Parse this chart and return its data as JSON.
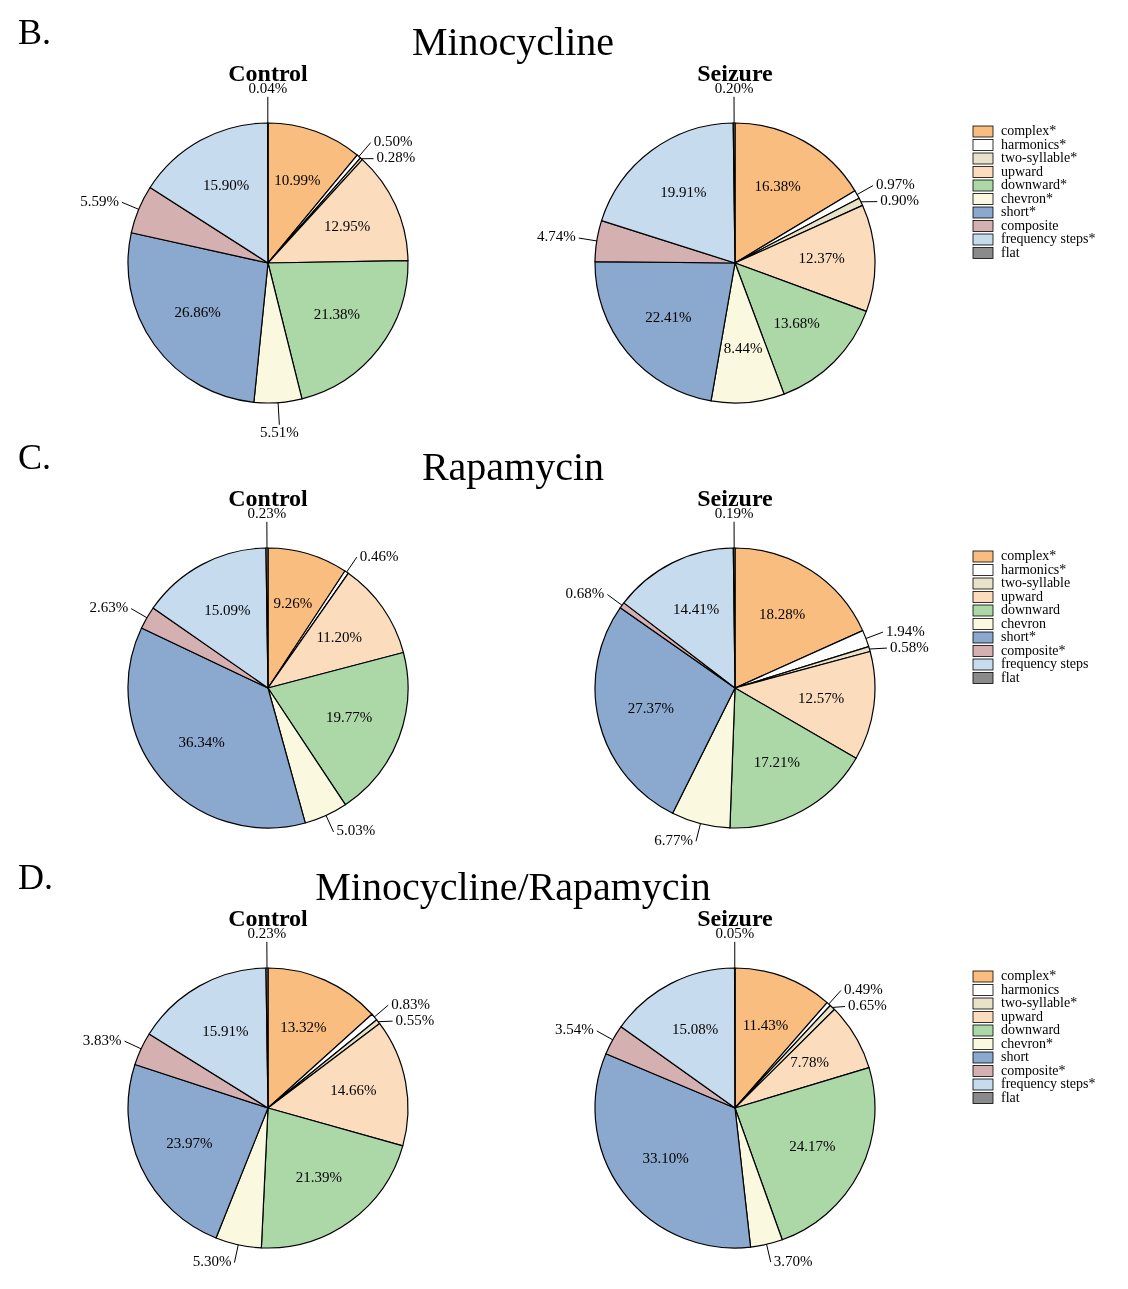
{
  "chart_data": [
    {
      "type": "pie",
      "title": "Control",
      "annotations": [
        "B.",
        "Minocycline"
      ],
      "values": [
        10.99,
        0.5,
        0.28,
        12.95,
        21.38,
        5.51,
        26.86,
        5.59,
        15.9,
        0.04
      ],
      "value_labels": [
        "10.99%",
        "0.50%",
        "0.28%",
        "12.95%",
        "21.38%",
        "5.51%",
        "26.86%",
        "5.59%",
        "15.90%",
        "0.04%"
      ],
      "colors": [
        "#f8bd7f",
        "#ffffff",
        "#e8e2c8",
        "#fbdcbd",
        "#acd8a8",
        "#fbf8e0",
        "#8ba8cf",
        "#d4b0b0",
        "#c7dbef",
        "#8a8a8a"
      ],
      "legend": false
    },
    {
      "type": "pie",
      "title": "Seizure",
      "categories": [
        "complex*",
        "harmonics*",
        "two-syllable*",
        "upward",
        "downward*",
        "chevron*",
        "short*",
        "composite",
        "frequency steps*",
        "flat"
      ],
      "values": [
        16.38,
        0.97,
        0.9,
        12.37,
        13.68,
        8.44,
        22.41,
        4.74,
        19.91,
        0.2
      ],
      "value_labels": [
        "16.38%",
        "0.97%",
        "0.90%",
        "12.37%",
        "13.68%",
        "8.44%",
        "22.41%",
        "4.74%",
        "19.91%",
        "0.20%"
      ],
      "colors": [
        "#f8bd7f",
        "#ffffff",
        "#e8e2c8",
        "#fbdcbd",
        "#acd8a8",
        "#fbf8e0",
        "#8ba8cf",
        "#d4b0b0",
        "#c7dbef",
        "#8a8a8a"
      ],
      "legend": "right"
    },
    {
      "type": "pie",
      "title": "Control",
      "annotations": [
        "C.",
        "Rapamycin"
      ],
      "values": [
        9.26,
        0.46,
        0,
        11.2,
        19.77,
        5.03,
        36.34,
        2.63,
        15.09,
        0.23
      ],
      "value_labels": [
        "9.26%",
        "0.46%",
        null,
        "11.20%",
        "19.77%",
        "5.03%",
        "36.34%",
        "2.63%",
        "15.09%",
        "0.23%"
      ],
      "colors": [
        "#f8bd7f",
        "#ffffff",
        "#e8e2c8",
        "#fbdcbd",
        "#acd8a8",
        "#fbf8e0",
        "#8ba8cf",
        "#d4b0b0",
        "#c7dbef",
        "#8a8a8a"
      ],
      "legend": false
    },
    {
      "type": "pie",
      "title": "Seizure",
      "categories": [
        "complex*",
        "harmonics*",
        "two-syllable",
        "upward",
        "downward",
        "chevron",
        "short*",
        "composite*",
        "frequency steps",
        "flat"
      ],
      "values": [
        18.28,
        1.94,
        0.58,
        12.57,
        17.21,
        6.77,
        27.37,
        0.68,
        14.41,
        0.19
      ],
      "value_labels": [
        "18.28%",
        "1.94%",
        "0.58%",
        "12.57%",
        "17.21%",
        "6.77%",
        "27.37%",
        "0.68%",
        "14.41%",
        "0.19%"
      ],
      "colors": [
        "#f8bd7f",
        "#ffffff",
        "#e8e2c8",
        "#fbdcbd",
        "#acd8a8",
        "#fbf8e0",
        "#8ba8cf",
        "#d4b0b0",
        "#c7dbef",
        "#8a8a8a"
      ],
      "legend": "right"
    },
    {
      "type": "pie",
      "title": "Control",
      "annotations": [
        "D.",
        "Minocycline/Rapamycin"
      ],
      "values": [
        13.32,
        0.83,
        0.55,
        14.66,
        21.39,
        5.3,
        23.97,
        3.83,
        15.91,
        0.23
      ],
      "value_labels": [
        "13.32%",
        "0.83%",
        "0.55%",
        "14.66%",
        "21.39%",
        "5.30%",
        "23.97%",
        "3.83%",
        "15.91%",
        "0.23%"
      ],
      "colors": [
        "#f8bd7f",
        "#ffffff",
        "#e8e2c8",
        "#fbdcbd",
        "#acd8a8",
        "#fbf8e0",
        "#8ba8cf",
        "#d4b0b0",
        "#c7dbef",
        "#8a8a8a"
      ],
      "legend": false
    },
    {
      "type": "pie",
      "title": "Seizure",
      "categories": [
        "complex*",
        "harmonics",
        "two-syllable*",
        "upward",
        "downward",
        "chevron*",
        "short",
        "composite*",
        "frequency steps*",
        "flat"
      ],
      "values": [
        11.43,
        0.49,
        0.65,
        7.78,
        24.17,
        3.7,
        33.1,
        3.54,
        15.08,
        0.05
      ],
      "value_labels": [
        "11.43%",
        "0.49%",
        "0.65%",
        "7.78%",
        "24.17%",
        "3.70%",
        "33.10%",
        "3.54%",
        "15.08%",
        "0.05%"
      ],
      "colors": [
        "#f8bd7f",
        "#ffffff",
        "#e8e2c8",
        "#fbdcbd",
        "#acd8a8",
        "#fbf8e0",
        "#8ba8cf",
        "#d4b0b0",
        "#c7dbef",
        "#8a8a8a"
      ],
      "legend": "right"
    }
  ]
}
